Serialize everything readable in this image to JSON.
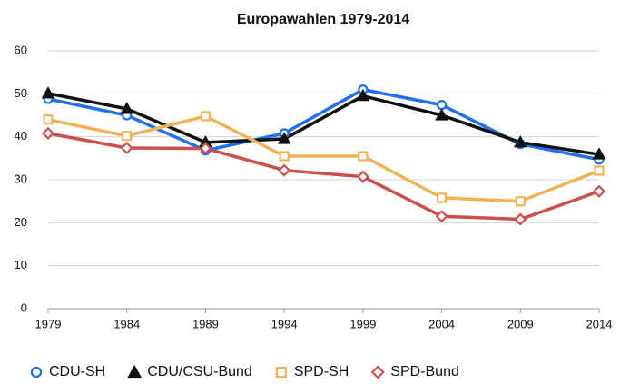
{
  "chart_data": {
    "type": "line",
    "title": "Europawahlen 1979-2014",
    "x": [
      1979,
      1984,
      1989,
      1994,
      1999,
      2004,
      2009,
      2014
    ],
    "xlim": [
      1979,
      2014
    ],
    "xticks": [
      1979,
      1984,
      1989,
      1994,
      1999,
      2004,
      2009,
      2014
    ],
    "ylim": [
      0,
      60
    ],
    "yticks": [
      0,
      10,
      20,
      30,
      40,
      50,
      60
    ],
    "grid": true,
    "legend": "bottom",
    "series": [
      {
        "name": "CDU-SH",
        "color": "#1f6ff2",
        "marker": "circle",
        "values": [
          48.8,
          45,
          36.8,
          40.8,
          51,
          47.4,
          38.3,
          34.7
        ]
      },
      {
        "name": "CDU/CSU-Bund",
        "color": "#111111",
        "marker": "triangle",
        "values": [
          50.1,
          46.5,
          38.7,
          39.5,
          49.5,
          45,
          38.7,
          35.9
        ]
      },
      {
        "name": "SPD-SH",
        "color": "#f0b256",
        "marker": "square",
        "values": [
          44,
          40.2,
          44.8,
          35.5,
          35.5,
          25.8,
          25,
          32.1
        ]
      },
      {
        "name": "SPD-Bund",
        "color": "#c9504b",
        "marker": "diamond",
        "values": [
          40.8,
          37.4,
          37.3,
          32.2,
          30.7,
          21.5,
          20.8,
          27.3
        ]
      }
    ]
  }
}
